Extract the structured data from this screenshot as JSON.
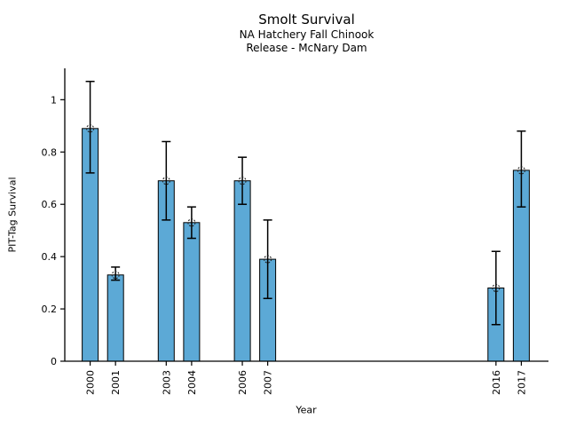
{
  "chart_data": {
    "type": "bar",
    "title": "Smolt Survival",
    "subtitle": [
      "NA Hatchery Fall Chinook",
      "Release - McNary Dam"
    ],
    "xlabel": "Year",
    "ylabel": "PIT-Tag Survival",
    "categories": [
      2000,
      2001,
      2003,
      2004,
      2006,
      2007,
      2016,
      2017
    ],
    "values": [
      0.89,
      0.33,
      0.69,
      0.53,
      0.69,
      0.39,
      0.28,
      0.73
    ],
    "error_low": [
      0.72,
      0.31,
      0.54,
      0.47,
      0.6,
      0.24,
      0.14,
      0.59
    ],
    "error_high": [
      1.07,
      0.36,
      0.84,
      0.59,
      0.78,
      0.54,
      0.42,
      0.88
    ],
    "yticks": [
      0,
      0.2,
      0.4,
      0.6,
      0.8,
      1
    ],
    "ytick_labels": [
      "0",
      "0.2",
      "0.4",
      "0.6",
      "0.8",
      "1"
    ],
    "xlim": [
      1999,
      2018.07
    ],
    "ylim": [
      0,
      1.12
    ],
    "grid": false,
    "legend_position": "none",
    "marker": "open-circle-dashed",
    "colors": {
      "bar_fill": "#5CA9D6",
      "bar_edge": "#000000",
      "error_bar": "#000000",
      "marker_edge": "#222222",
      "axis": "#000000",
      "text": "#000000",
      "background": "#ffffff"
    }
  }
}
